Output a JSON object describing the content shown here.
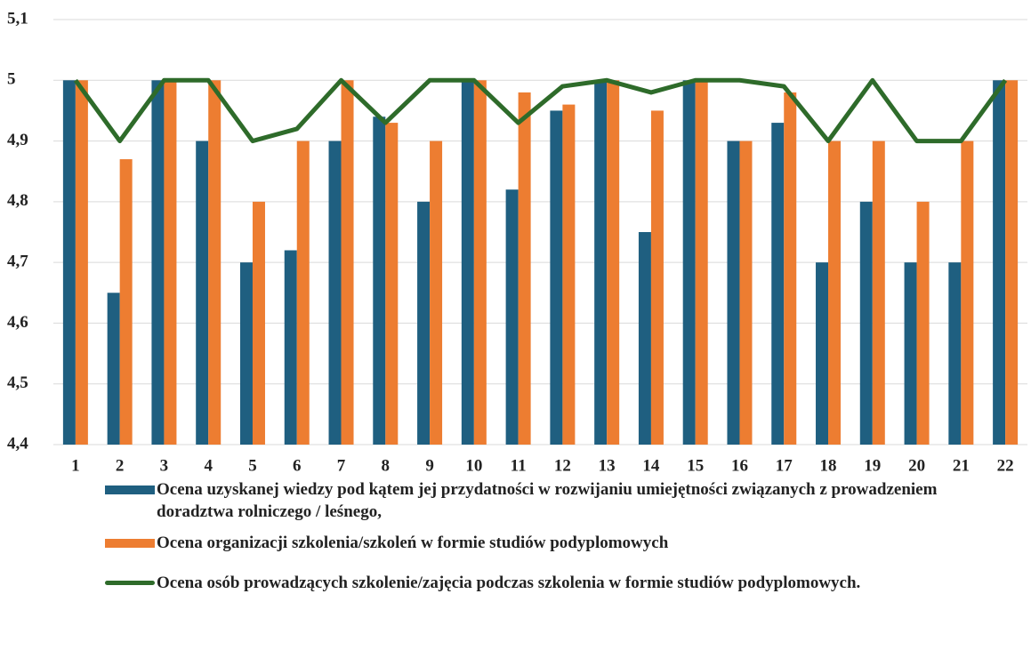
{
  "chart_data": {
    "type": "bar",
    "categories": [
      "1",
      "2",
      "3",
      "4",
      "5",
      "6",
      "7",
      "8",
      "9",
      "10",
      "11",
      "12",
      "13",
      "14",
      "15",
      "16",
      "17",
      "18",
      "19",
      "20",
      "21",
      "22"
    ],
    "series": [
      {
        "name": "Ocena uzyskanej wiedzy pod kątem jej przydatności w rozwijaniu umiejętności związanych z prowadzeniem doradztwa rolniczego / leśnego,",
        "color": "#1f5f80",
        "type": "bar",
        "values": [
          5.0,
          4.65,
          5.0,
          4.9,
          4.7,
          4.72,
          4.9,
          4.94,
          4.8,
          5.0,
          4.82,
          4.95,
          5.0,
          4.75,
          5.0,
          4.9,
          4.93,
          4.7,
          4.8,
          4.7,
          4.7,
          5.0
        ]
      },
      {
        "name": "Ocena organizacji szkolenia/szkoleń w formie studiów podyplomowych",
        "color": "#ed7d31",
        "type": "bar",
        "values": [
          5.0,
          4.87,
          5.0,
          5.0,
          4.8,
          4.9,
          5.0,
          4.93,
          4.9,
          5.0,
          4.98,
          4.96,
          5.0,
          4.95,
          5.0,
          4.9,
          4.98,
          4.9,
          4.9,
          4.8,
          4.9,
          5.0
        ]
      },
      {
        "name": "Ocena osób prowadzących szkolenie/zajęcia podczas szkolenia w formie studiów podyplomowych.",
        "color": "#2e6b2a",
        "type": "line",
        "values": [
          5.0,
          4.9,
          5.0,
          5.0,
          4.9,
          4.92,
          5.0,
          4.93,
          5.0,
          5.0,
          4.93,
          4.99,
          5.0,
          4.98,
          5.0,
          5.0,
          4.99,
          4.9,
          5.0,
          4.9,
          4.9,
          5.0
        ]
      }
    ],
    "ylim": [
      4.4,
      5.1
    ],
    "yticks": [
      {
        "value": 4.4,
        "label": "4,4"
      },
      {
        "value": 4.5,
        "label": "4,5"
      },
      {
        "value": 4.6,
        "label": "4,6"
      },
      {
        "value": 4.7,
        "label": "4,7"
      },
      {
        "value": 4.8,
        "label": "4,8"
      },
      {
        "value": 4.9,
        "label": "4,9"
      },
      {
        "value": 5,
        "label": "5"
      },
      {
        "value": 5.1,
        "label": "5,1"
      }
    ],
    "grid": true
  }
}
